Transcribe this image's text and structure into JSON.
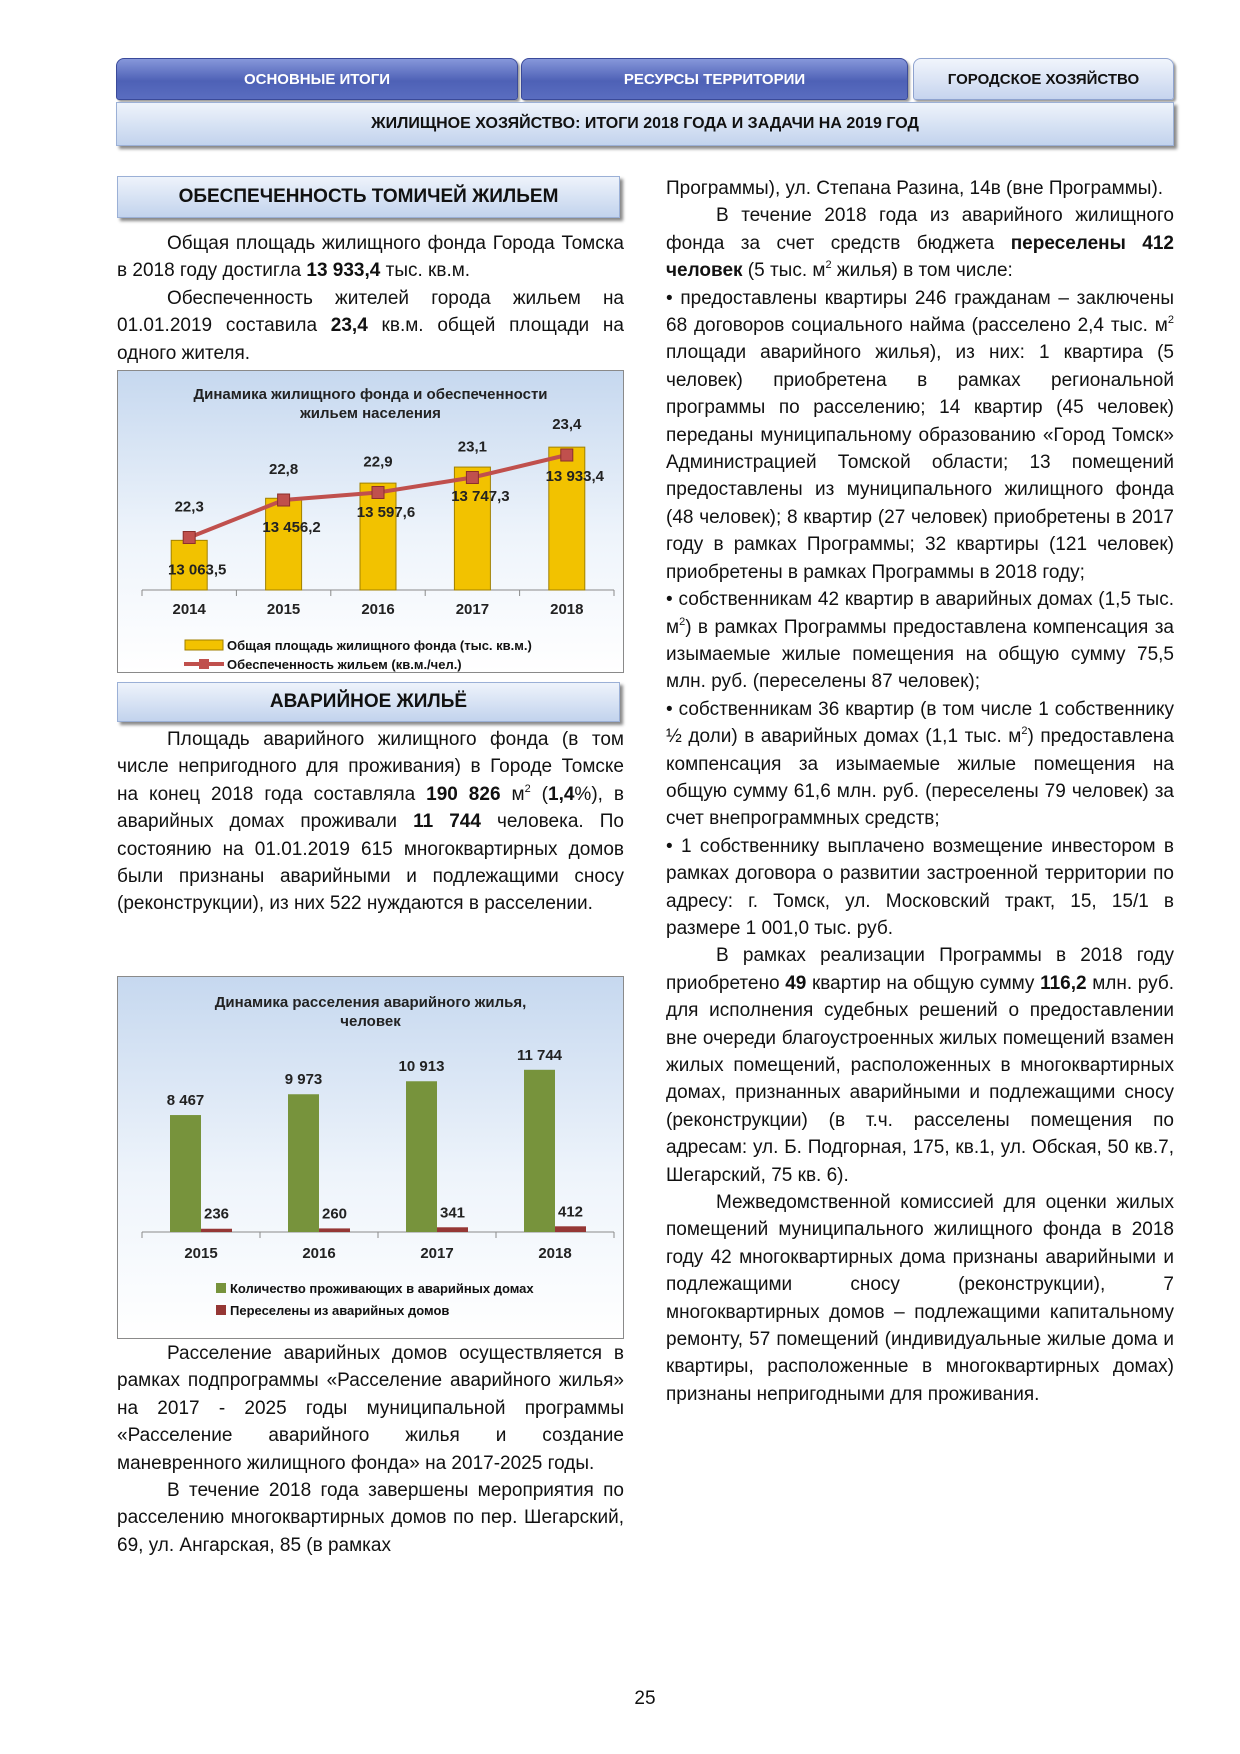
{
  "tabs": [
    "ОСНОВНЫЕ ИТОГИ",
    "РЕСУРСЫ ТЕРРИТОРИИ",
    "ГОРОДСКОЕ ХОЗЯЙСТВО"
  ],
  "page_title": "ЖИЛИЩНОЕ ХОЗЯЙСТВО: ИТОГИ 2018 ГОДА И ЗАДАЧИ НА 2019 ГОД",
  "left": {
    "section1": {
      "heading": "ОБЕСПЕЧЕННОСТЬ ТОМИЧЕЙ ЖИЛЬЕМ",
      "paragraphs": [
        {
          "style": "indent",
          "runs": [
            "Общая площадь жилищного фонда Города Томска в 2018 году достигла ",
            {
              "t": "13 933,4",
              "b": true
            },
            " тыс. кв.м."
          ]
        },
        {
          "style": "indent",
          "runs": [
            "Обеспеченность жителей города жильем на 01.01.2019 составила ",
            {
              "t": "23,4",
              "b": true
            },
            " кв.м. общей площади на одного жителя."
          ]
        }
      ]
    },
    "section2": {
      "heading": "АВАРИЙНОЕ ЖИЛЬЁ",
      "paragraphs": [
        {
          "style": "indent",
          "runs": [
            "Площадь аварийного жилищного фонда (в том числе непригодного для проживания) в Городе Томске на конец 2018 года составляла ",
            {
              "t": "190 826",
              "b": true
            },
            " м",
            {
              "t": "2",
              "sup": true
            },
            " (",
            {
              "t": "1,4",
              "b": true
            },
            "%), в аварийных домах проживали ",
            {
              "t": "11 744",
              "b": true
            },
            " человека. По состоянию на 01.01.2019 615 многоквартирных домов были признаны аварийными и подлежащими сносу (реконструкции), из них 522 нуждаются в расселении."
          ]
        }
      ]
    },
    "continued_paragraphs": [
      {
        "style": "indent",
        "runs": [
          "Расселение аварийных домов осуществляется в рамках подпрограммы «Расселение аварийного жилья» на 2017 - 2025 годы муниципальной программы «Расселение аварийного жилья и создание маневренного жилищного фонда» на 2017-2025 годы."
        ]
      },
      {
        "style": "indent",
        "runs": [
          "В течение 2018 года завершены мероприятия по расселению многоквартирных домов по пер. Шегарский, 69, ул. Ангарская, 85 (в рамках"
        ]
      }
    ]
  },
  "right": {
    "paragraphs": [
      {
        "style": "continuation",
        "runs": [
          "Программы), ул. Степана Разина, 14в (вне Программы)."
        ]
      },
      {
        "style": "indent",
        "runs": [
          "В течение 2018 года из аварийного жилищного фонда за счет средств бюджета ",
          {
            "t": "переселены 412 человек",
            "b": true
          },
          " (5 тыс. м",
          {
            "t": "2",
            "sup": true
          },
          " жилья) в том числе:"
        ]
      },
      {
        "style": "bullet",
        "runs": [
          "предоставлены квартиры 246 гражданам – заключены 68 договоров социального найма (расселено 2,4 тыс. м",
          {
            "t": "2",
            "sup": true
          },
          " площади аварийного жилья), из них: 1 квартира (5 человек) приобретена в рамках региональной программы по расселению; 14 квартир (45 человек) переданы муниципальному образованию «Город Томск» Администрацией Томской области; 13 помещений предоставлены из муниципального жилищного фонда (48 человек); 8 квартир (27 человек) приобретены в 2017 году в рамках Программы; 32 квартиры (121 человек) приобретены в рамках Программы в 2018 году;"
        ]
      },
      {
        "style": "bullet",
        "runs": [
          "собственникам 42 квартир в аварийных домах (1,5 тыс. м",
          {
            "t": "2",
            "sup": true
          },
          ") в рамках Программы предоставлена компенсация за изымаемые жилые помещения на общую сумму 75,5 млн. руб. (переселены 87 человек);"
        ]
      },
      {
        "style": "bullet",
        "runs": [
          "собственникам 36 квартир (в том числе 1 собственнику ½ доли) в аварийных домах (1,1 тыс. м",
          {
            "t": "2",
            "sup": true
          },
          ") предоставлена компенсация за изымаемые жилые помещения на общую сумму 61,6 млн. руб. (переселены 79 человек) за счет внепрограммных средств;"
        ]
      },
      {
        "style": "bullet",
        "runs": [
          "1 собственнику выплачено возмещение инвестором в рамках договора о развитии застроенной территории по адресу: г. Томск, ул. Московский тракт, 15, 15/1 в размере 1 001,0 тыс. руб."
        ]
      },
      {
        "style": "indent",
        "runs": [
          "В рамках реализации Программы в 2018 году приобретено ",
          {
            "t": "49",
            "b": true
          },
          " квартир на общую сумму ",
          {
            "t": "116,2",
            "b": true
          },
          " млн. руб. для исполнения судебных решений о предоставлении вне очереди благоустроенных жилых помещений взамен жилых помещений, расположенных в многоквартирных домах, признанных аварийными и подлежащими сносу (реконструкции) (в т.ч. расселены помещения по адресам: ул. Б. Подгорная, 175, кв.1, ул. Обская, 50 кв.7, Шегарский, 75 кв. 6)."
        ]
      },
      {
        "style": "indent",
        "runs": [
          "Межведомственной комиссией для оценки жилых помещений муниципального жилищного фонда в 2018 году 42 многоквартирных дома признаны аварийными и подлежащими сносу (реконструкции), 7 многоквартирных домов – подлежащими капитальному ремонту, 57 помещений (индивидуальные жилые дома и квартиры, расположенные в многоквартирных домах) признаны непригодными для проживания."
        ]
      }
    ]
  },
  "chart_data": [
    {
      "type": "bar_line",
      "title": "Динамика жилищного фонда и обеспеченности жильем населения",
      "categories": [
        "2014",
        "2015",
        "2016",
        "2017",
        "2018"
      ],
      "series": [
        {
          "name": "Общая площадь жилищного фонда (тыс. кв.м.)",
          "type": "bar",
          "color": "#f2c200",
          "values": [
            13063.5,
            13456.2,
            13597.6,
            13747.3,
            13933.4
          ],
          "value_labels": [
            "13 063,5",
            "13 456,2",
            "13 597,6",
            "13 747,3",
            "13 933,4"
          ]
        },
        {
          "name": "Обеспеченность жильем (кв.м./чел.)",
          "type": "line",
          "axis": "y2",
          "color": "#c0504d",
          "values": [
            22.3,
            22.8,
            22.9,
            23.1,
            23.4
          ],
          "value_labels": [
            "22,3",
            "22,8",
            "22,9",
            "23,1",
            "23,4"
          ]
        }
      ],
      "ylim": [
        12600,
        14000
      ],
      "y2lim": [
        21.6,
        23.6
      ]
    },
    {
      "type": "bar",
      "title": "Динамика расселения аварийного жилья, человек",
      "categories": [
        "2015",
        "2016",
        "2017",
        "2018"
      ],
      "series": [
        {
          "name": "Количество проживающих в аварийных домах",
          "color": "#77933c",
          "values": [
            8467,
            9973,
            10913,
            11744
          ],
          "value_labels": [
            "8 467",
            "9 973",
            "10 913",
            "11 744"
          ]
        },
        {
          "name": "Переселены из аварийных домов",
          "color": "#953735",
          "values": [
            236,
            260,
            341,
            412
          ]
        }
      ],
      "ylim": [
        0,
        16000
      ]
    }
  ],
  "page_number": "25"
}
